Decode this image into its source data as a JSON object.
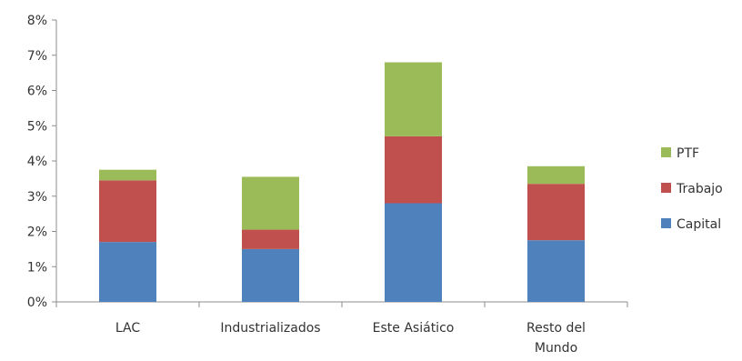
{
  "chart_data": {
    "type": "bar",
    "stacked": true,
    "title": "",
    "xlabel": "",
    "ylabel": "",
    "ylim": [
      0,
      8
    ],
    "y_ticks": [
      "0%",
      "1%",
      "2%",
      "3%",
      "4%",
      "5%",
      "6%",
      "7%",
      "8%"
    ],
    "categories": [
      [
        "LAC"
      ],
      [
        "Industrializados"
      ],
      [
        "Este Asiático"
      ],
      [
        "Resto del",
        "Mundo"
      ]
    ],
    "series": [
      {
        "name": "Capital",
        "color": "#4f81bd",
        "values": [
          1.7,
          1.5,
          2.8,
          1.75
        ]
      },
      {
        "name": "Trabajo",
        "color": "#c0504d",
        "values": [
          1.75,
          0.55,
          1.9,
          1.6
        ]
      },
      {
        "name": "PTF",
        "color": "#9bbb59",
        "values": [
          0.3,
          1.5,
          2.1,
          0.5
        ]
      }
    ],
    "legend": {
      "position": "right",
      "order": [
        "PTF",
        "Trabajo",
        "Capital"
      ]
    },
    "grid": false
  }
}
